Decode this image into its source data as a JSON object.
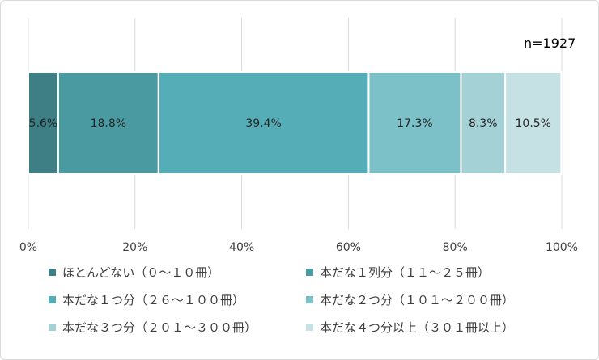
{
  "chart_data": {
    "type": "bar",
    "orientation": "horizontal-stacked",
    "note": "n=1927",
    "xlim": [
      0,
      100
    ],
    "x_ticks": [
      "0%",
      "20%",
      "40%",
      "60%",
      "80%",
      "100%"
    ],
    "grid": true,
    "legend_position": "bottom",
    "series": [
      {
        "name": "ほとんどない（０～１０冊）",
        "value": 5.6,
        "label": "5.6%",
        "color": "#3d7f84"
      },
      {
        "name": "本だな１列分（１１～２５冊）",
        "value": 18.8,
        "label": "18.8%",
        "color": "#4a9aa1"
      },
      {
        "name": "本だな１つ分（２６～１００冊）",
        "value": 39.4,
        "label": "39.4%",
        "color": "#55aeb7"
      },
      {
        "name": "本だな２つ分（１０１～２００冊）",
        "value": 17.3,
        "label": "17.3%",
        "color": "#7cc1c8"
      },
      {
        "name": "本だな３つ分（２０１～３００冊）",
        "value": 8.3,
        "label": "8.3%",
        "color": "#a4d1d6"
      },
      {
        "name": "本だな４つ分以上（３０１冊以上）",
        "value": 10.5,
        "label": "10.5%",
        "color": "#c5e1e4"
      }
    ]
  }
}
